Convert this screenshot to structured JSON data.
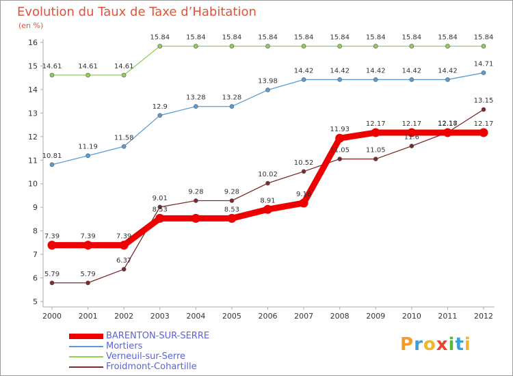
{
  "header": {
    "title": "Evolution du Taux de Taxe d’Habitation",
    "unit": "(en %)"
  },
  "branding": {
    "logo_letters": [
      "P",
      "r",
      "o",
      "x",
      "i",
      "t",
      "i"
    ],
    "logo_colors": [
      "#f39c2b",
      "#3aa0d8",
      "#f0b52a",
      "#e8452c",
      "#5bb63e",
      "#3aa0d8",
      "#f0b52a"
    ]
  },
  "chart_data": {
    "type": "line",
    "x": [
      "2000",
      "2001",
      "2002",
      "2003",
      "2004",
      "2005",
      "2006",
      "2007",
      "2008",
      "2009",
      "2010",
      "2011",
      "2012"
    ],
    "ylim": [
      5,
      16
    ],
    "yticks": [
      "5",
      "6",
      "7",
      "8",
      "9",
      "10",
      "11",
      "12",
      "13",
      "14",
      "15",
      "16"
    ],
    "grid": false,
    "legend_position": "bottom-left",
    "series": [
      {
        "name": "BARENTON-SUR-SERRE",
        "color": "#ee0000",
        "values": [
          7.39,
          7.39,
          7.39,
          8.53,
          8.53,
          8.53,
          8.91,
          9.18,
          11.93,
          12.17,
          12.17,
          12.17,
          12.17
        ],
        "labels": [
          "7.39",
          "7.39",
          "7.39",
          "8.53",
          "",
          "8.53",
          "8.91",
          "9.18",
          "11.93",
          "12.17",
          "12.17",
          "12.17",
          "12.17"
        ]
      },
      {
        "name": "Mortiers",
        "color": "#5b9bd5",
        "values": [
          10.81,
          11.19,
          11.58,
          12.9,
          13.28,
          13.28,
          13.98,
          14.42,
          14.42,
          14.42,
          14.42,
          14.42,
          14.71
        ],
        "labels": [
          "10.81",
          "11.19",
          "11.58",
          "12.9",
          "13.28",
          "13.28",
          "13.98",
          "14.42",
          "14.42",
          "14.42",
          "14.42",
          "14.42",
          "14.71"
        ]
      },
      {
        "name": "Verneuil-sur-Serre",
        "color": "#8fd14f",
        "values": [
          14.61,
          14.61,
          14.61,
          15.84,
          15.84,
          15.84,
          15.84,
          15.84,
          15.84,
          15.84,
          15.84,
          15.84,
          15.84
        ],
        "labels": [
          "14.61",
          "14.61",
          "14.61",
          "15.84",
          "15.84",
          "15.84",
          "15.84",
          "15.84",
          "15.84",
          "15.84",
          "15.84",
          "15.84",
          "15.84"
        ]
      },
      {
        "name": "Froidmont-Cohartille",
        "color": "#7a2a2a",
        "values": [
          5.79,
          5.79,
          6.37,
          9.01,
          9.28,
          9.28,
          10.02,
          10.52,
          11.05,
          11.05,
          11.6,
          12.18,
          13.15
        ],
        "labels": [
          "5.79",
          "5.79",
          "6.37",
          "9.01",
          "9.28",
          "9.28",
          "10.02",
          "10.52",
          "11.05",
          "11.05",
          "11.6",
          "12.18",
          "13.15"
        ]
      }
    ]
  }
}
